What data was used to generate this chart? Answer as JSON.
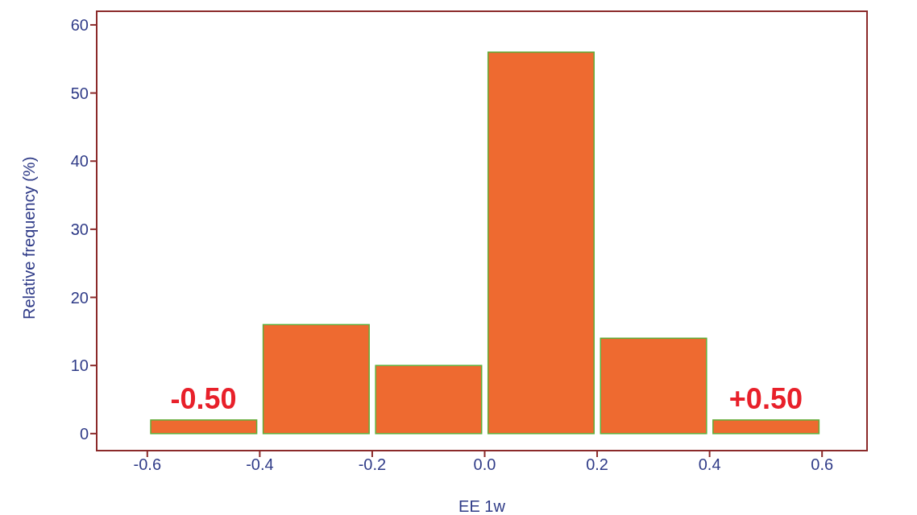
{
  "chart_data": {
    "type": "histogram",
    "xlabel": "EE 1w",
    "ylabel": "Relative frequency (%)",
    "bins": [
      -0.6,
      -0.4,
      -0.2,
      0,
      0.2,
      0.4,
      0.6
    ],
    "values": [
      2,
      16,
      10,
      56,
      14,
      2
    ],
    "color": "#ee6a30",
    "xlim": [
      -0.69,
      0.68
    ],
    "ylim": [
      -2.5,
      62
    ],
    "xticks": [
      -0.6,
      -0.4,
      -0.2,
      {
        "value": 0,
        "label": "0.0"
      },
      0.2,
      0.4,
      0.6
    ],
    "yticks": [
      0,
      10,
      20,
      30,
      40,
      50,
      60
    ],
    "grid": false,
    "legend": false,
    "annotations": [
      "-0.50",
      "+0.50"
    ]
  }
}
